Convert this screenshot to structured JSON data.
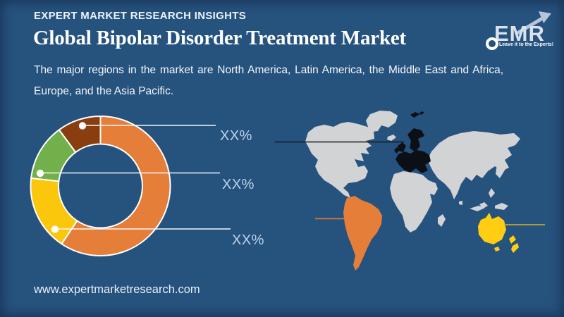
{
  "colors": {
    "background": "#26527E",
    "white": "#FFFFFF",
    "leader_line": "#F2F6FA",
    "callout_text": "#BDD4EA"
  },
  "header": {
    "brand": "EXPERT MARKET RESEARCH INSIGHTS",
    "title": "Global Bipolar Disorder Treatment Market",
    "subtitle_line1": "The major regions in the market are North America, Latin America, the Middle East and Africa,",
    "subtitle_line2": "Europe, and the Asia Pacific."
  },
  "logo": {
    "text": "EMR",
    "tagline": "Leave it to the Experts!"
  },
  "footer": {
    "website": "www.expertmarketresearch.com"
  },
  "chart_data": {
    "type": "pie",
    "variant": "donut",
    "legend_position": "none",
    "start_angle_deg": 0,
    "direction": "clockwise",
    "segments": [
      {
        "id": "orange",
        "color": "#E57E38",
        "value_pct": 59.4,
        "callout": null
      },
      {
        "id": "yellow",
        "color": "#FBC70D",
        "value_pct": 17.4,
        "callout": "XX%"
      },
      {
        "id": "green",
        "color": "#71B04B",
        "value_pct": 13.1,
        "callout": "XX%"
      },
      {
        "id": "brown",
        "color": "#8A3D0F",
        "value_pct": 10.1,
        "callout": "XX%"
      }
    ],
    "callouts": [
      {
        "text": "XX%",
        "points_to": "brown"
      },
      {
        "text": "XX%",
        "points_to": "green"
      },
      {
        "text": "XX%",
        "points_to": "yellow"
      }
    ]
  },
  "map": {
    "base_color": "#D2D3D4",
    "highlights": {
      "europe": "#0C1016",
      "south_america": "#E57E38",
      "australia_new_zealand": "#FFCE12"
    },
    "leader_lines": {
      "europe": "#141920",
      "south_america": "#E57E38",
      "australia": "#D7B32C"
    }
  }
}
